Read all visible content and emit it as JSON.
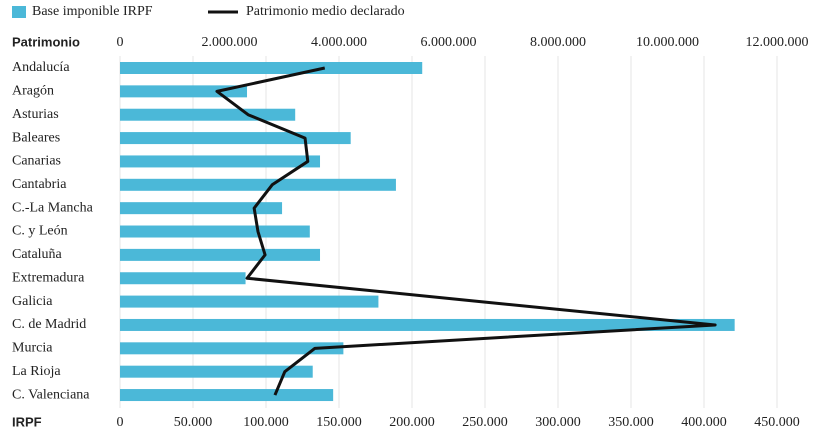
{
  "chart_data": {
    "type": "bar",
    "orientation": "horizontal",
    "grid": true,
    "x2label": "Patrimonio",
    "xlabel": "IRPF",
    "categories": [
      "Andalucía",
      "Aragón",
      "Asturias",
      "Baleares",
      "Canarias",
      "Cantabria",
      "C.-La Mancha",
      "C. y León",
      "Cataluña",
      "Extremadura",
      "Galicia",
      "C. de Madrid",
      "Murcia",
      "La Rioja",
      "C. Valenciana"
    ],
    "series": [
      {
        "name": "Base imponible IRPF",
        "color": "#4bb8d8",
        "type": "bar",
        "axis": "x",
        "values": [
          207000,
          87000,
          120000,
          158000,
          137000,
          189000,
          111000,
          130000,
          137000,
          86000,
          177000,
          421000,
          153000,
          132000,
          146000
        ]
      },
      {
        "name": "Patrimonio medio declarado",
        "color": "#111111",
        "type": "line",
        "axis": "x2",
        "values": [
          3740000,
          1770000,
          2340000,
          3380000,
          3430000,
          2780000,
          2450000,
          2520000,
          2650000,
          2320000,
          6580000,
          10870000,
          3560000,
          3010000,
          2830000
        ]
      }
    ],
    "xlim": [
      0,
      450000
    ],
    "xticks": [
      0,
      {
        "value": 50000,
        "label": "50.000"
      },
      {
        "value": 100000,
        "label": "100.000"
      },
      {
        "value": 150000,
        "label": "150.000"
      },
      {
        "value": 200000,
        "label": "200.000"
      },
      {
        "value": 250000,
        "label": "250.000"
      },
      {
        "value": 300000,
        "label": "300.000"
      },
      {
        "value": 350000,
        "label": "350.000"
      },
      {
        "value": 400000,
        "label": "400.000"
      },
      {
        "value": 450000,
        "label": "450.000"
      }
    ],
    "x2lim": [
      0,
      12000000
    ],
    "x2ticks": [
      0,
      {
        "value": 2000000,
        "label": "2.000.000"
      },
      {
        "value": 4000000,
        "label": "4.000.000"
      },
      {
        "value": 6000000,
        "label": "6.000.000"
      },
      {
        "value": 8000000,
        "label": "8.000.000"
      },
      {
        "value": 10000000,
        "label": "10.000.000"
      },
      {
        "value": 12000000,
        "label": "12.000.000"
      }
    ]
  }
}
